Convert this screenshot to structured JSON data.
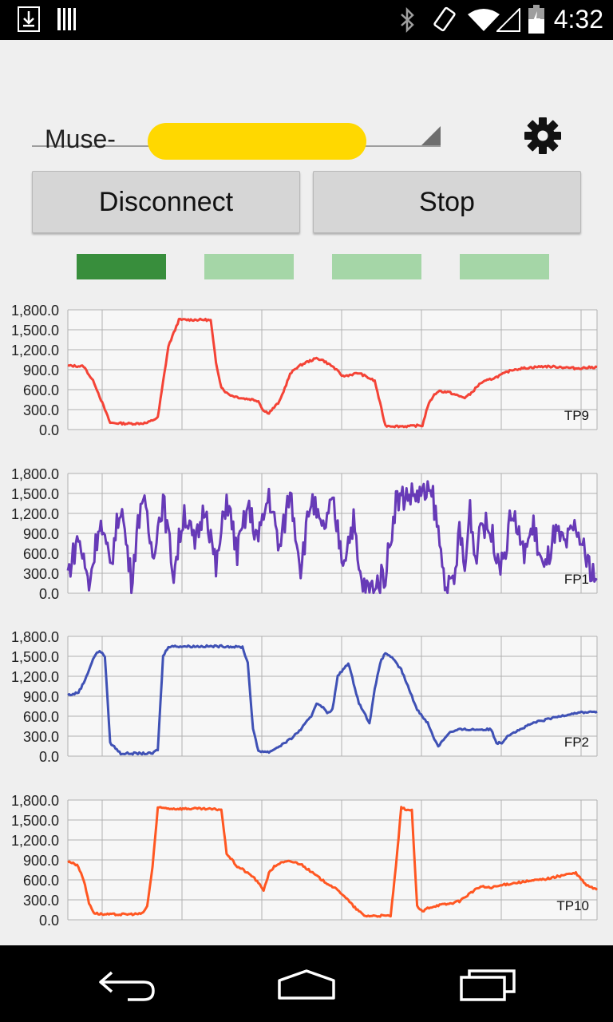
{
  "status_bar": {
    "time": "4:32",
    "left_icons": [
      "download-icon",
      "barcode-icon"
    ],
    "right_icons": [
      "bluetooth-icon",
      "rotate-icon",
      "wifi-icon",
      "signal-icon",
      "battery-icon"
    ]
  },
  "device_selector": {
    "selected_label": "Muse-"
  },
  "buttons": {
    "disconnect_label": "Disconnect",
    "stop_label": "Stop"
  },
  "indicators": [
    {
      "state": "active",
      "color": "#388e3c"
    },
    {
      "state": "inactive",
      "color": "#a5d6a7"
    },
    {
      "state": "inactive",
      "color": "#a5d6a7"
    },
    {
      "state": "inactive",
      "color": "#a5d6a7"
    }
  ],
  "chart_data": [
    {
      "type": "line",
      "title": "TP9",
      "color": "#f44336",
      "ylim": [
        0,
        1800
      ],
      "yticks": [
        "1,800.0",
        "1,500.0",
        "1,200.0",
        "900.0",
        "600.0",
        "300.0",
        "0.0"
      ],
      "x": [
        0,
        3,
        5,
        8,
        11,
        13,
        15,
        17,
        19,
        21,
        24,
        26,
        27,
        28,
        29,
        30,
        31,
        33,
        35,
        36,
        37,
        38,
        40,
        42,
        43,
        45,
        47,
        48,
        50,
        52,
        55,
        58,
        60,
        62,
        64,
        65,
        66,
        67,
        68,
        69,
        70,
        72,
        74,
        75,
        76,
        78,
        81,
        84,
        87,
        90,
        93,
        96,
        100
      ],
      "values": [
        960,
        950,
        700,
        100,
        90,
        90,
        100,
        180,
        1250,
        1650,
        1650,
        1650,
        1640,
        1000,
        640,
        550,
        510,
        470,
        450,
        430,
        280,
        250,
        420,
        830,
        920,
        1010,
        1070,
        1050,
        950,
        800,
        850,
        730,
        60,
        50,
        50,
        50,
        60,
        60,
        350,
        500,
        580,
        560,
        500,
        480,
        530,
        700,
        790,
        900,
        930,
        950,
        940,
        920,
        940
      ]
    },
    {
      "type": "line",
      "title": "FP1",
      "color": "#673ab7",
      "ylim": [
        0,
        1800
      ],
      "yticks": [
        "1,800.0",
        "1,500.0",
        "1,200.0",
        "900.0",
        "600.0",
        "300.0",
        "0.0"
      ],
      "x": [
        0,
        2,
        4,
        6,
        8,
        10,
        12,
        14,
        16,
        18,
        20,
        22,
        24,
        26,
        28,
        30,
        32,
        34,
        36,
        38,
        40,
        42,
        44,
        46,
        48,
        50,
        52,
        54,
        55,
        56,
        57,
        58,
        60,
        62,
        64,
        66,
        67,
        68,
        69,
        70,
        71,
        72,
        73,
        74,
        75,
        76,
        77,
        78,
        80,
        82,
        84,
        86,
        88,
        90,
        92,
        94,
        96,
        98,
        100
      ],
      "values": [
        300,
        850,
        120,
        1100,
        400,
        1350,
        200,
        1500,
        600,
        1400,
        300,
        1250,
        700,
        1350,
        350,
        1450,
        600,
        1300,
        800,
        1500,
        650,
        1550,
        400,
        1450,
        900,
        1350,
        500,
        1100,
        300,
        80,
        60,
        100,
        300,
        1400,
        1470,
        1480,
        1480,
        1480,
        1450,
        900,
        300,
        60,
        120,
        1000,
        300,
        1300,
        500,
        1100,
        900,
        400,
        1250,
        600,
        1000,
        300,
        900,
        700,
        1000,
        500,
        200
      ],
      "noise": true
    },
    {
      "type": "line",
      "title": "FP2",
      "color": "#3f51b5",
      "ylim": [
        0,
        1800
      ],
      "yticks": [
        "1,800.0",
        "1,500.0",
        "1,200.0",
        "900.0",
        "600.0",
        "300.0",
        "0.0"
      ],
      "x": [
        0,
        1,
        2,
        3,
        4,
        5,
        6,
        6.5,
        7,
        8,
        10,
        12,
        14,
        16,
        17,
        18,
        19,
        20,
        22,
        24,
        28,
        30,
        32,
        33,
        34,
        35,
        36,
        38,
        40,
        42,
        44,
        46,
        47,
        48,
        49,
        50,
        51,
        53,
        55,
        57,
        58,
        59,
        60,
        61,
        63,
        65,
        66,
        67,
        68,
        69,
        70,
        72,
        74,
        76,
        78,
        80,
        81,
        82,
        83,
        84,
        85,
        86,
        87,
        88,
        90,
        92,
        94,
        96,
        98,
        100
      ],
      "values": [
        920,
        930,
        960,
        1100,
        1300,
        1500,
        1590,
        1540,
        1500,
        200,
        40,
        40,
        40,
        40,
        100,
        1500,
        1650,
        1650,
        1650,
        1650,
        1650,
        1650,
        1640,
        1640,
        1400,
        400,
        80,
        60,
        150,
        250,
        400,
        600,
        800,
        750,
        650,
        700,
        1200,
        1400,
        800,
        500,
        1000,
        1400,
        1550,
        1500,
        1300,
        900,
        700,
        600,
        500,
        300,
        150,
        350,
        400,
        400,
        400,
        400,
        200,
        200,
        300,
        350,
        380,
        420,
        460,
        500,
        540,
        580,
        620,
        650,
        660,
        670
      ]
    },
    {
      "type": "line",
      "title": "TP10",
      "color": "#ff5722",
      "ylim": [
        0,
        1800
      ],
      "yticks": [
        "1,800.0",
        "1,500.0",
        "1,200.0",
        "900.0",
        "600.0",
        "300.0",
        "0.0"
      ],
      "x": [
        0,
        1,
        2,
        3,
        4,
        5,
        7,
        10,
        14,
        15,
        16,
        17,
        18,
        20,
        22,
        24,
        28,
        29,
        30,
        31,
        32,
        33,
        34,
        35,
        36,
        37,
        38,
        39,
        40,
        42,
        44,
        46,
        48,
        50,
        52,
        54,
        56,
        58,
        60,
        61,
        62,
        63,
        64,
        65,
        66,
        67,
        68,
        69,
        70,
        72,
        74,
        76,
        78,
        80,
        82,
        84,
        86,
        88,
        90,
        92,
        94,
        96,
        98,
        100
      ],
      "values": [
        870,
        860,
        800,
        600,
        250,
        100,
        80,
        80,
        90,
        200,
        800,
        1680,
        1680,
        1670,
        1670,
        1670,
        1660,
        1660,
        1000,
        900,
        800,
        760,
        700,
        650,
        550,
        450,
        700,
        800,
        850,
        880,
        840,
        720,
        600,
        500,
        380,
        200,
        60,
        60,
        60,
        60,
        800,
        1680,
        1660,
        1640,
        200,
        120,
        180,
        200,
        220,
        240,
        280,
        400,
        500,
        480,
        520,
        550,
        570,
        590,
        610,
        640,
        680,
        700,
        520,
        450
      ]
    }
  ],
  "nav_bar": {
    "icons": [
      "back-icon",
      "home-icon",
      "recents-icon"
    ]
  }
}
